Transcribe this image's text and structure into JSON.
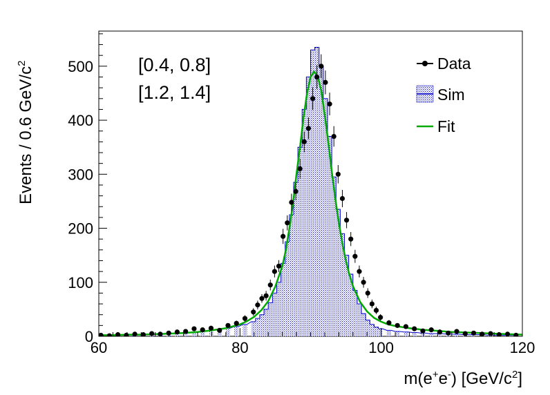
{
  "chart_data": {
    "type": "line",
    "title": "",
    "xlabel": {
      "base": "m(e",
      "sup1": "+",
      "mid": "e",
      "sup2": "-",
      "tail": ") [GeV/c",
      "sup3": "2",
      "end": "]"
    },
    "ylabel": {
      "base": "Events / 0.6 GeV/c",
      "sup": "2"
    },
    "xlim": [
      60,
      120
    ],
    "ylim": [
      0,
      565
    ],
    "x_ticks": [
      60,
      80,
      100,
      120
    ],
    "y_ticks": [
      0,
      100,
      200,
      300,
      400,
      500
    ],
    "annotations": [
      "[0.4, 0.8]",
      "[1.2, 1.4]"
    ],
    "legend": {
      "position": "top-right",
      "entries": [
        "Data",
        "Sim",
        "Fit"
      ]
    },
    "colors": {
      "data": "#000000",
      "sim": "#0000cc",
      "fit": "#00aa00"
    },
    "series": [
      {
        "name": "Data",
        "style": "points-with-errors",
        "x": [
          60.3,
          61.5,
          62.7,
          63.9,
          65.1,
          66.3,
          67.5,
          68.7,
          69.9,
          71.1,
          72.3,
          73.5,
          74.7,
          75.9,
          77.1,
          78.3,
          79.5,
          80.7,
          81.9,
          82.5,
          83.1,
          83.7,
          84.3,
          84.9,
          85.5,
          86.1,
          86.7,
          87.3,
          87.9,
          88.5,
          89.1,
          89.7,
          90.3,
          90.9,
          91.5,
          92.1,
          92.7,
          93.3,
          93.9,
          94.5,
          95.1,
          95.7,
          96.3,
          96.9,
          97.5,
          98.1,
          98.7,
          99.3,
          99.9,
          101.1,
          102.3,
          103.5,
          104.7,
          105.9,
          107.1,
          108.3,
          109.5,
          110.7,
          111.9,
          113.1,
          114.3,
          115.5,
          116.7,
          117.9,
          119.1
        ],
        "y": [
          2,
          1,
          3,
          2,
          4,
          3,
          5,
          4,
          6,
          8,
          9,
          14,
          12,
          15,
          11,
          20,
          24,
          33,
          45,
          58,
          70,
          75,
          95,
          120,
          130,
          185,
          210,
          248,
          268,
          310,
          360,
          385,
          440,
          480,
          500,
          470,
          430,
          370,
          300,
          255,
          215,
          180,
          148,
          120,
          100,
          80,
          60,
          48,
          35,
          25,
          20,
          18,
          14,
          10,
          12,
          8,
          6,
          9,
          5,
          6,
          4,
          5,
          3,
          4,
          2
        ],
        "err": [
          1,
          1,
          2,
          1,
          2,
          2,
          2,
          2,
          2,
          3,
          3,
          4,
          3,
          4,
          3,
          4,
          5,
          6,
          7,
          8,
          8,
          9,
          10,
          11,
          11,
          14,
          14,
          16,
          16,
          18,
          19,
          20,
          21,
          22,
          22,
          22,
          21,
          19,
          17,
          16,
          15,
          13,
          12,
          11,
          10,
          9,
          8,
          7,
          6,
          5,
          4,
          4,
          4,
          3,
          3,
          3,
          2,
          3,
          2,
          2,
          2,
          2,
          2,
          2,
          1
        ]
      },
      {
        "name": "Sim",
        "style": "hatched-histogram",
        "bin_width": 0.6,
        "x": [
          60.3,
          61.5,
          62.7,
          63.9,
          65.1,
          66.3,
          67.5,
          68.7,
          69.9,
          71.1,
          72.3,
          73.5,
          74.7,
          75.9,
          77.1,
          78.3,
          79.5,
          80.7,
          81.9,
          82.5,
          83.1,
          83.7,
          84.3,
          84.9,
          85.5,
          86.1,
          86.7,
          87.3,
          87.9,
          88.5,
          89.1,
          89.7,
          90.3,
          90.9,
          91.5,
          92.1,
          92.7,
          93.3,
          93.9,
          94.5,
          95.1,
          95.7,
          96.3,
          96.9,
          97.5,
          98.1,
          98.7,
          99.3,
          99.9,
          101.1,
          102.3,
          103.5,
          104.7,
          105.9,
          107.1,
          108.3,
          109.5,
          110.7,
          111.9,
          113.1,
          114.3,
          115.5,
          116.7,
          117.9,
          119.1
        ],
        "y": [
          2,
          2,
          2,
          3,
          3,
          4,
          4,
          5,
          5,
          6,
          7,
          8,
          9,
          11,
          13,
          15,
          18,
          22,
          27,
          33,
          40,
          50,
          62,
          80,
          100,
          135,
          175,
          225,
          285,
          350,
          420,
          480,
          530,
          535,
          500,
          440,
          370,
          295,
          235,
          190,
          150,
          115,
          85,
          60,
          42,
          30,
          22,
          17,
          14,
          11,
          9,
          8,
          7,
          6,
          5,
          5,
          4,
          4,
          3,
          3,
          3,
          2,
          2,
          2,
          2
        ]
      },
      {
        "name": "Fit",
        "style": "line",
        "x": [
          60,
          62,
          64,
          66,
          68,
          70,
          72,
          74,
          76,
          78,
          80,
          81,
          82,
          83,
          84,
          85,
          86,
          86.5,
          87,
          87.5,
          88,
          88.5,
          89,
          89.5,
          90,
          90.5,
          91,
          91.5,
          92,
          92.5,
          93,
          93.5,
          94,
          94.5,
          95,
          95.5,
          96,
          97,
          98,
          99,
          100,
          101,
          102,
          103,
          104,
          106,
          108,
          110,
          112,
          114,
          116,
          118,
          120
        ],
        "y": [
          2,
          2,
          3,
          3,
          4,
          5,
          6,
          8,
          11,
          15,
          22,
          28,
          36,
          48,
          65,
          92,
          130,
          160,
          200,
          245,
          300,
          350,
          405,
          450,
          480,
          490,
          482,
          455,
          410,
          360,
          305,
          255,
          210,
          172,
          140,
          114,
          93,
          64,
          46,
          34,
          27,
          22,
          19,
          17,
          15,
          12,
          10,
          8,
          7,
          6,
          5,
          4,
          3
        ]
      }
    ]
  }
}
